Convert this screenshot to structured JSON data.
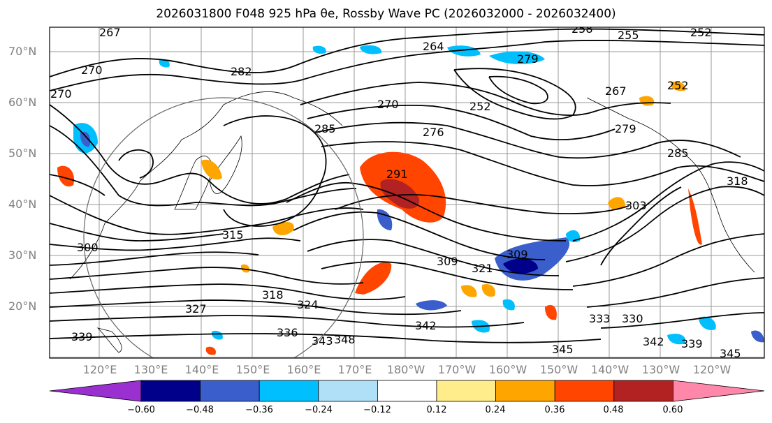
{
  "title": "2026031800 F048 925 hPa θe, Rossby Wave PC (2026032000 - 2026032400)",
  "lat_labels": [
    "70°N",
    "60°N",
    "50°N",
    "40°N",
    "30°N",
    "20°N"
  ],
  "lon_labels": [
    "120°E",
    "130°E",
    "140°E",
    "150°E",
    "160°E",
    "170°E",
    "180°W",
    "170°W",
    "160°W",
    "150°W",
    "140°W",
    "130°W",
    "120°W"
  ],
  "contour_labels": [
    "267",
    "270",
    "270",
    "282",
    "264",
    "279",
    "258",
    "255",
    "252",
    "252",
    "267",
    "252",
    "270",
    "276",
    "279",
    "285",
    "291",
    "303",
    "318",
    "315",
    "309",
    "321",
    "309",
    "300",
    "318",
    "324",
    "327",
    "336",
    "343",
    "348",
    "342",
    "345",
    "333",
    "330",
    "342",
    "339",
    "339",
    "345",
    "285"
  ],
  "colorbar": {
    "ticks": [
      "−0.60",
      "−0.48",
      "−0.36",
      "−0.24",
      "−0.12",
      "0.12",
      "0.24",
      "0.36",
      "0.48",
      "0.60"
    ],
    "colors": [
      "#9b30d0",
      "#00008b",
      "#3a5fcd",
      "#00bfff",
      "#b0e0f8",
      "#ffffff",
      "#ffec8b",
      "#ffa500",
      "#ff4500",
      "#b22222",
      "#ff88aa"
    ]
  }
}
